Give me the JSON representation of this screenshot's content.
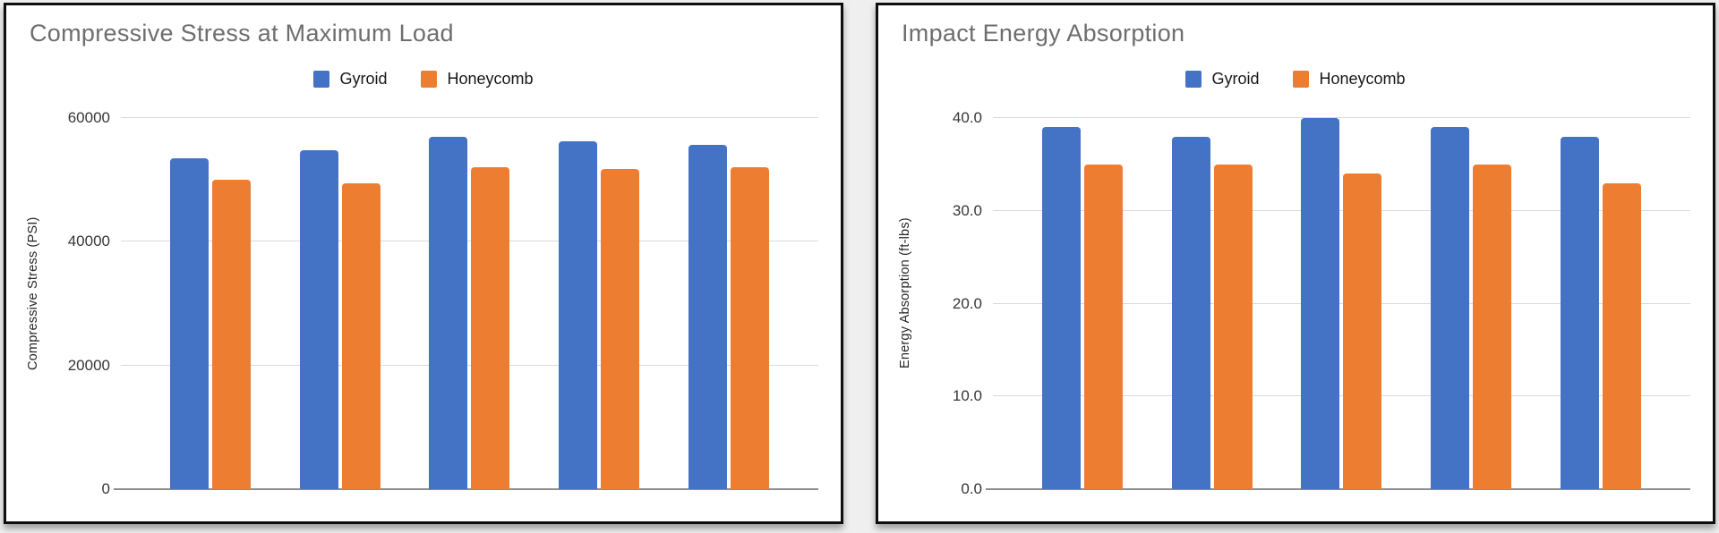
{
  "page": {
    "background_color": "#efefef",
    "card_background": "#ffffff",
    "card_border_color": "#0e0e0e"
  },
  "chart_data": [
    {
      "type": "bar",
      "title": "Compressive Stress at Maximum Load",
      "xlabel": "",
      "ylabel": "Compressive Stress (PSI)",
      "ylim": [
        0,
        60000
      ],
      "grid": true,
      "legend_position": "top",
      "x_axis_labels_visible": false,
      "grid_color": "#d9d9d9",
      "axis_line_color": "#8d8d8d",
      "yticks": [
        {
          "value": 0,
          "label": "0"
        },
        {
          "value": 20000,
          "label": "20000"
        },
        {
          "value": 40000,
          "label": "40000"
        },
        {
          "value": 60000,
          "label": "60000"
        }
      ],
      "series": [
        {
          "name": "Gyroid",
          "color": "#4472C4",
          "values": [
            53500,
            54800,
            56900,
            56200,
            55700
          ]
        },
        {
          "name": "Honeycomb",
          "color": "#ED7D31",
          "values": [
            50000,
            49500,
            52100,
            51800,
            52000
          ]
        }
      ]
    },
    {
      "type": "bar",
      "title": "Impact Energy Absorption",
      "xlabel": "",
      "ylabel": "Energy Absorption (ft-lbs)",
      "ylim": [
        0,
        40
      ],
      "grid": true,
      "legend_position": "top",
      "x_axis_labels_visible": false,
      "grid_color": "#d9d9d9",
      "axis_line_color": "#8d8d8d",
      "yticks": [
        {
          "value": 0,
          "label": "0.0"
        },
        {
          "value": 10,
          "label": "10.0"
        },
        {
          "value": 20,
          "label": "20.0"
        },
        {
          "value": 30,
          "label": "30.0"
        },
        {
          "value": 40,
          "label": "40.0"
        }
      ],
      "series": [
        {
          "name": "Gyroid",
          "color": "#4472C4",
          "values": [
            39.0,
            38.0,
            40.0,
            39.0,
            38.0
          ]
        },
        {
          "name": "Honeycomb",
          "color": "#ED7D31",
          "values": [
            35.0,
            35.0,
            34.0,
            35.0,
            33.0
          ]
        }
      ]
    }
  ]
}
